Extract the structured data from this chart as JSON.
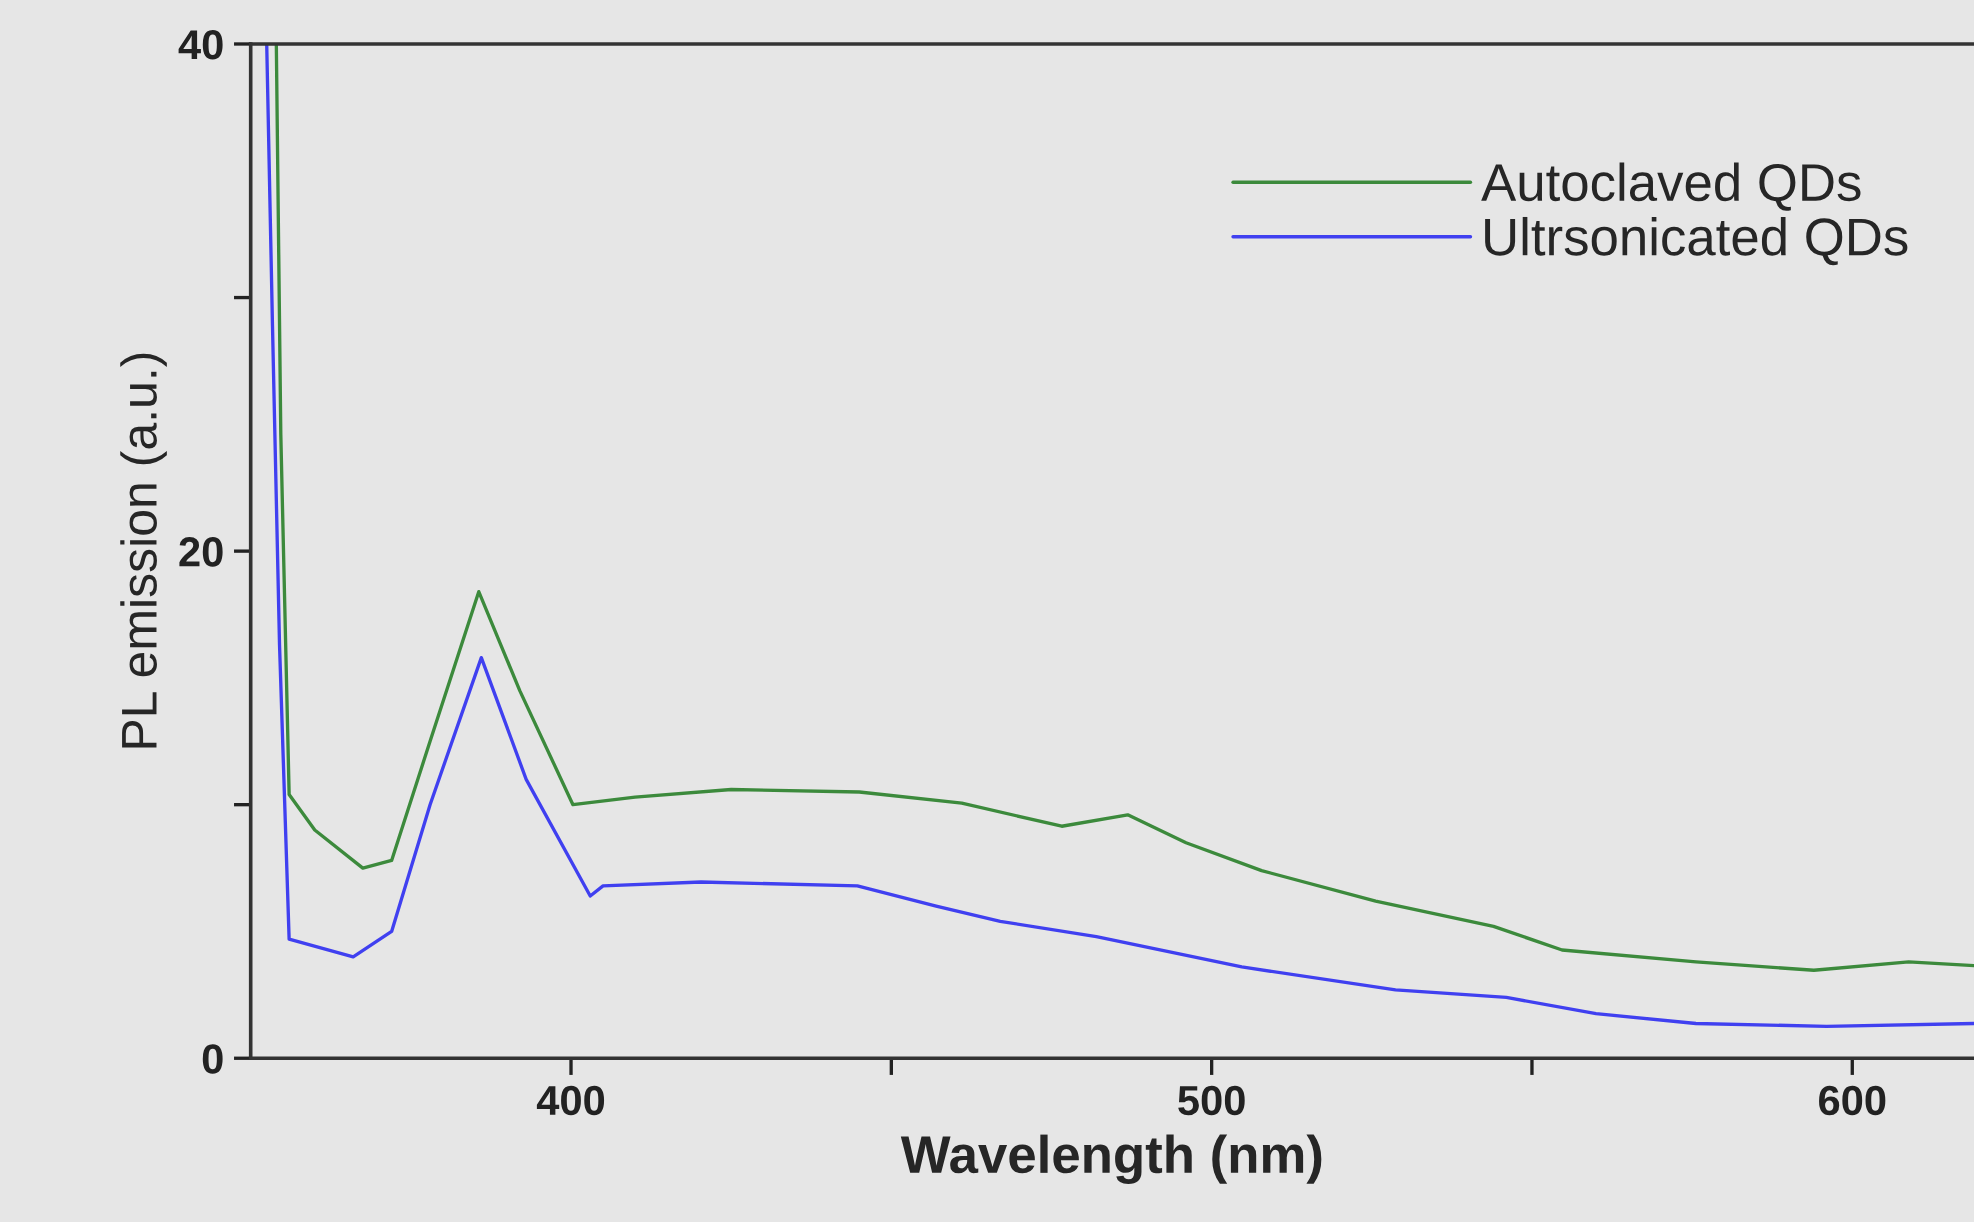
{
  "chart_data": {
    "type": "line",
    "xlabel": "Wavelength (nm)",
    "ylabel": "PL emission (a.u.)",
    "xlim": [
      350,
      619
    ],
    "ylim": [
      0,
      40
    ],
    "xticks": [
      400,
      {
        "value": 450,
        "label": null
      },
      500,
      {
        "value": 550,
        "label": null
      },
      600
    ],
    "yticks": [
      0,
      {
        "value": 10,
        "label": null
      },
      20,
      {
        "value": 30,
        "label": null
      },
      40
    ],
    "grid": false,
    "legend": "top right",
    "marker": "none",
    "line_style": "solid",
    "series": [
      {
        "name": "Autoclaved QDs",
        "color": "#3c8a3c",
        "x": [
          354,
          354.7,
          356,
          360,
          367.5,
          372,
          378,
          385.6,
          392,
          400.3,
          410,
          425,
          445,
          461,
          476.6,
          486.9,
          496,
          507.8,
          525.6,
          544,
          554.7,
          575.6,
          594,
          608.8,
          619
        ],
        "values": [
          40,
          24.6,
          10.4,
          9.0,
          7.5,
          7.8,
          12.5,
          18.4,
          14.5,
          10.0,
          10.3,
          10.6,
          10.5,
          10.06,
          9.15,
          9.6,
          8.5,
          7.4,
          6.2,
          5.2,
          4.27,
          3.8,
          3.47,
          3.8,
          3.65
        ]
      },
      {
        "name": "Ultrsonicated QDs",
        "color": "#4040f0",
        "x": [
          352.5,
          353.4,
          354.5,
          356,
          366,
          372,
          378,
          386,
          393,
          403,
          405,
          420.3,
          444.7,
          457,
          467,
          482,
          504.7,
          528.7,
          546,
          560,
          575.6,
          596,
          619
        ],
        "values": [
          40,
          28.9,
          16.3,
          4.7,
          4.0,
          5.0,
          10.0,
          15.8,
          11.0,
          6.4,
          6.8,
          6.95,
          6.8,
          6.0,
          5.4,
          4.8,
          3.6,
          2.7,
          2.4,
          1.76,
          1.37,
          1.26,
          1.37
        ]
      }
    ]
  }
}
